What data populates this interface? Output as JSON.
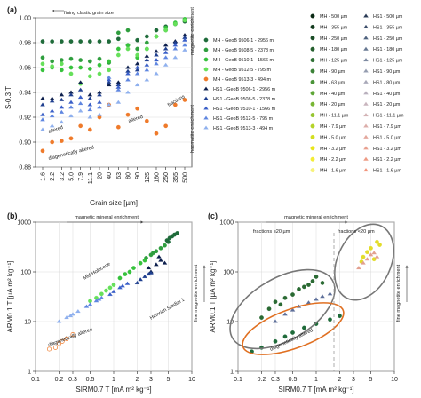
{
  "figure": {
    "panels": {
      "a": {
        "label": "(a)",
        "ylabel": "S-0.3 T",
        "xlabel": "Grain size [µm]",
        "annotations": {
          "fining": "fining clastic grain size",
          "magnetite_enrichment": "magnetite enrichment",
          "haematite_enrichment": "haematite enrichment",
          "fractions": "fractions",
          "altered_1": "altered",
          "altered_2": "altered",
          "diag": "diagenetically altered"
        }
      },
      "b": {
        "label": "(b)",
        "ylabel": "ARM0.1 T [µA m² kg⁻¹]",
        "xlabel": "SIRM0.7 T [mA m² kg⁻¹]",
        "annotations": {
          "enrich": "magnetic mineral enrichment",
          "fine": "fine magnetite enrichment",
          "mid_holocene": "Mid Holocene",
          "heinrich": "Heinrich Stadial 1",
          "diag": "diagenetically altered"
        }
      },
      "c": {
        "label": "(c)",
        "ylabel": "ARM0.1 T [µA m² kg⁻¹]",
        "xlabel": "SIRM0.7 T [mA m² kg⁻¹]",
        "annotations": {
          "enrich": "magnetic mineral enrichment",
          "fine": "fine magnetite enrichment",
          "frac_gt": "fractions ≥20 µm",
          "frac_lt": "fractions <20 µm",
          "diag": "diagenetically altered"
        }
      }
    },
    "legend_a": [
      {
        "label": "MH - GeoB 9506-1 - 2956 m",
        "color": "#1f6b3a",
        "marker": "circle"
      },
      {
        "label": "MH - GeoB 9508-5 - 2378 m",
        "color": "#2f9e3e",
        "marker": "circle"
      },
      {
        "label": "MH - GeoB 9510-1 - 1566 m",
        "color": "#36c23c",
        "marker": "circle"
      },
      {
        "label": "MH - GeoB 9512-5 - 795 m",
        "color": "#66e05a",
        "marker": "circle"
      },
      {
        "label": "MH - GeoB 9513-3 - 494 m",
        "color": "#ef7a2a",
        "marker": "circle"
      },
      {
        "label": "HS1 - GeoB 9506-1 - 2956 m",
        "color": "#0d1f4d",
        "marker": "triangle"
      },
      {
        "label": "HS1 - GeoB 9508-5 - 2378 m",
        "color": "#1f3f8f",
        "marker": "triangle"
      },
      {
        "label": "HS1 - GeoB 9510-1 - 1566 m",
        "color": "#3a5fc8",
        "marker": "triangle"
      },
      {
        "label": "HS1 - GeoB 9512-5 - 795 m",
        "color": "#5f86e0",
        "marker": "triangle"
      },
      {
        "label": "HS1 - GeoB 9513-3 - 494 m",
        "color": "#8fb0ee",
        "marker": "triangle"
      }
    ],
    "legend_c": {
      "mh": [
        {
          "label": "MH - 500 µm",
          "color": "#0a2a14"
        },
        {
          "label": "MH - 355 µm",
          "color": "#123a1d"
        },
        {
          "label": "MH - 250 µm",
          "color": "#1b4d26"
        },
        {
          "label": "MH - 180 µm",
          "color": "#255f2e"
        },
        {
          "label": "MH - 125 µm",
          "color": "#2f7034"
        },
        {
          "label": "MH - 90 µm",
          "color": "#3b8237"
        },
        {
          "label": "MH - 63 µm",
          "color": "#4a9438"
        },
        {
          "label": "MH - 40 µm",
          "color": "#5ea637"
        },
        {
          "label": "MH - 20 µm",
          "color": "#78b634"
        },
        {
          "label": "MH - 11.1 µm",
          "color": "#96c52f"
        },
        {
          "label": "MH - 7.9 µm",
          "color": "#b5d328"
        },
        {
          "label": "MH - 5.0 µm",
          "color": "#d2de20"
        },
        {
          "label": "MH - 3.2 µm",
          "color": "#e8e51a"
        },
        {
          "label": "MH - 2.2 µm",
          "color": "#f3ec36"
        },
        {
          "label": "MH - 1.6 µm",
          "color": "#f7f27a"
        }
      ],
      "hs1": [
        {
          "label": "HS1 - 500 µm",
          "color": "#2a3a55"
        },
        {
          "label": "HS1 - 355 µm",
          "color": "#3b4d6a"
        },
        {
          "label": "HS1 - 250 µm",
          "color": "#4f627f"
        },
        {
          "label": "HS1 - 180 µm",
          "color": "#667791"
        },
        {
          "label": "HS1 - 125 µm",
          "color": "#7e8ba2"
        },
        {
          "label": "HS1 - 90 µm",
          "color": "#959db0"
        },
        {
          "label": "HS1 - 80 µm",
          "color": "#a8a8b8"
        },
        {
          "label": "HS1 - 40 µm",
          "color": "#b9b0bd"
        },
        {
          "label": "HS1 - 20 µm",
          "color": "#c8b4bd"
        },
        {
          "label": "HS1 - 11.1 µm",
          "color": "#d3b3b5"
        },
        {
          "label": "HS1 - 7.9 µm",
          "color": "#dcaeaa"
        },
        {
          "label": "HS1 - 5.0 µm",
          "color": "#e3a79c"
        },
        {
          "label": "HS1 - 3.2 µm",
          "color": "#e9a08f"
        },
        {
          "label": "HS1 - 2.2 µm",
          "color": "#ee9a84"
        },
        {
          "label": "HS1 - 1.6 µm",
          "color": "#f2957c"
        }
      ]
    }
  },
  "chart_data": [
    {
      "panel": "a",
      "type": "scatter",
      "xlabel": "Grain size [µm]",
      "ylabel": "S-0.3 T",
      "x_categories": [
        "1.6",
        "2.2",
        "3.2",
        "5.0",
        "7.9",
        "11.1",
        "20",
        "40",
        "63",
        "80",
        "90",
        "125",
        "180",
        "250",
        "355",
        "500"
      ],
      "ylim": [
        0.88,
        1.0
      ],
      "yticks": [
        0.88,
        0.9,
        0.92,
        0.94,
        0.96,
        0.98,
        1.0
      ],
      "series": [
        {
          "name": "MH - GeoB 9506-1 - 2956 m",
          "values": [
            0.981,
            0.981,
            0.981,
            0.981,
            0.981,
            0.981,
            0.981,
            0.981,
            0.983,
            0.978,
            0.982,
            0.985,
            0.99,
            0.993,
            0.995,
            0.997
          ]
        },
        {
          "name": "MH - GeoB 9508-5 - 2378 m",
          "values": [
            0.968,
            0.965,
            0.966,
            0.967,
            0.966,
            0.965,
            0.967,
            0.964,
            0.988,
            0.99,
            0.975,
            0.98,
            0.985,
            0.99,
            0.995,
            0.998
          ]
        },
        {
          "name": "MH - GeoB 9510-1 - 1566 m",
          "values": [
            0.958,
            0.96,
            0.958,
            0.96,
            0.96,
            0.959,
            0.962,
            0.965,
            0.975,
            0.978,
            0.968,
            0.975,
            0.985,
            0.992,
            0.996,
            0.999
          ]
        },
        {
          "name": "MH - GeoB 9512-5 - 795 m",
          "values": [
            0.963,
            0.961,
            0.963,
            0.955,
            0.947,
            0.953,
            0.955,
            0.958,
            0.97,
            0.975,
            0.97,
            0.975,
            0.985,
            0.99,
            0.995,
            0.998
          ]
        },
        {
          "name": "MH - GeoB 9513-3 - 494 m",
          "values": [
            0.893,
            0.9,
            0.901,
            0.903,
            0.913,
            0.91,
            0.92,
            0.93,
            0.912,
            0.922,
            0.927,
            0.917,
            0.907,
            0.913,
            0.93,
            0.934
          ]
        },
        {
          "name": "HS1 - GeoB 9506-1 - 2956 m",
          "values": [
            0.935,
            0.935,
            0.938,
            0.94,
            0.948,
            0.938,
            0.94,
            0.946,
            0.948,
            0.96,
            0.963,
            0.969,
            0.973,
            0.978,
            0.981,
            0.986
          ]
        },
        {
          "name": "HS1 - GeoB 9508-5 - 2378 m",
          "values": [
            0.93,
            0.933,
            0.934,
            0.938,
            0.942,
            0.935,
            0.938,
            0.948,
            0.946,
            0.957,
            0.958,
            0.966,
            0.97,
            0.975,
            0.98,
            0.984
          ]
        },
        {
          "name": "HS1 - GeoB 9510-1 - 1566 m",
          "values": [
            0.922,
            0.925,
            0.928,
            0.932,
            0.936,
            0.93,
            0.932,
            0.95,
            0.944,
            0.955,
            0.96,
            0.962,
            0.966,
            0.972,
            0.978,
            0.982
          ]
        },
        {
          "name": "HS1 - GeoB 9512-5 - 795 m",
          "values": [
            0.918,
            0.921,
            0.924,
            0.928,
            0.931,
            0.926,
            0.928,
            0.952,
            0.942,
            0.95,
            0.955,
            0.958,
            0.963,
            0.968,
            0.975,
            0.978
          ]
        },
        {
          "name": "HS1 - GeoB 9513-3 - 494 m",
          "values": [
            0.91,
            0.913,
            0.916,
            0.921,
            0.925,
            0.92,
            0.922,
            0.93,
            0.932,
            0.94,
            0.946,
            0.95,
            0.955,
            0.962,
            0.968,
            0.974
          ]
        }
      ]
    },
    {
      "panel": "b",
      "type": "scatter",
      "xscale": "log",
      "yscale": "log",
      "xlim": [
        0.1,
        10
      ],
      "ylim": [
        1,
        1000
      ],
      "xticks": [
        0.1,
        0.2,
        0.3,
        0.5,
        1,
        2,
        3,
        5,
        10
      ],
      "yticks": [
        1,
        10,
        100,
        1000
      ],
      "xlabel": "SIRM0.7 T [mA m² kg⁻¹]",
      "ylabel": "ARM0.1 T [µA m² kg⁻¹]",
      "series": [
        {
          "name": "MH - GeoB 9506-1 - 2956 m",
          "points": [
            [
              5.2,
              480
            ],
            [
              6.0,
              560
            ],
            [
              5.6,
              520
            ],
            [
              4.8,
              430
            ],
            [
              6.5,
              600
            ],
            [
              5.0,
              400
            ]
          ]
        },
        {
          "name": "MH - GeoB 9508-5 - 2378 m",
          "points": [
            [
              3.0,
              220
            ],
            [
              3.5,
              260
            ],
            [
              4.0,
              300
            ],
            [
              2.6,
              190
            ],
            [
              4.5,
              340
            ],
            [
              3.2,
              240
            ]
          ]
        },
        {
          "name": "MH - GeoB 9510-1 - 1566 m",
          "points": [
            [
              1.4,
              90
            ],
            [
              1.8,
              120
            ],
            [
              2.2,
              150
            ],
            [
              1.2,
              75
            ],
            [
              2.5,
              170
            ],
            [
              1.6,
              100
            ]
          ]
        },
        {
          "name": "MH - GeoB 9512-5 - 795 m",
          "points": [
            [
              0.6,
              30
            ],
            [
              0.8,
              42
            ],
            [
              1.0,
              55
            ],
            [
              0.5,
              26
            ],
            [
              0.7,
              36
            ],
            [
              0.9,
              48
            ]
          ]
        },
        {
          "name": "MH - GeoB 9513-3 - 494 m",
          "points": [
            [
              0.15,
              2.8
            ],
            [
              0.2,
              3.6
            ],
            [
              0.25,
              4.5
            ],
            [
              0.3,
              5.5
            ],
            [
              0.18,
              3.0
            ],
            [
              0.22,
              4.0
            ]
          ]
        },
        {
          "name": "HS1 - GeoB 9506-1 - 2956 m",
          "points": [
            [
              3.0,
              100
            ],
            [
              3.5,
              140
            ],
            [
              4.0,
              170
            ],
            [
              2.8,
              120
            ],
            [
              3.8,
              200
            ],
            [
              4.5,
              150
            ]
          ]
        },
        {
          "name": "HS1 - GeoB 9508-5 - 2378 m",
          "points": [
            [
              2.0,
              60
            ],
            [
              2.5,
              80
            ],
            [
              3.0,
              95
            ],
            [
              2.2,
              70
            ],
            [
              2.8,
              90
            ]
          ]
        },
        {
          "name": "HS1 - GeoB 9510-1 - 1566 m",
          "points": [
            [
              1.0,
              40
            ],
            [
              1.2,
              48
            ],
            [
              1.5,
              58
            ],
            [
              0.9,
              35
            ],
            [
              1.3,
              52
            ]
          ]
        },
        {
          "name": "HS1 - GeoB 9512-5 - 795 m",
          "points": [
            [
              0.5,
              22
            ],
            [
              0.6,
              26
            ],
            [
              0.7,
              30
            ],
            [
              0.45,
              20
            ],
            [
              0.65,
              28
            ]
          ]
        },
        {
          "name": "HS1 - GeoB 9513-3 - 494 m",
          "points": [
            [
              0.2,
              10
            ],
            [
              0.25,
              12
            ],
            [
              0.3,
              14
            ],
            [
              0.35,
              16
            ],
            [
              0.28,
              13
            ]
          ]
        }
      ]
    },
    {
      "panel": "c",
      "type": "scatter",
      "xscale": "log",
      "yscale": "log",
      "xlim": [
        0.1,
        10
      ],
      "ylim": [
        1,
        1000
      ],
      "xticks": [
        0.1,
        0.2,
        0.3,
        0.5,
        1,
        2,
        3,
        5,
        10
      ],
      "yticks": [
        1,
        10,
        100,
        1000
      ],
      "xlabel": "SIRM0.7 T [mA m² kg⁻¹]",
      "ylabel": "ARM0.1 T [µA m² kg⁻¹]",
      "series": [
        {
          "name": "MH ≥20 µm",
          "points": [
            [
              0.2,
              12
            ],
            [
              0.25,
              18
            ],
            [
              0.3,
              25
            ],
            [
              0.4,
              30
            ],
            [
              0.5,
              35
            ],
            [
              0.6,
              45
            ],
            [
              0.7,
              50
            ],
            [
              0.9,
              65
            ],
            [
              1.0,
              80
            ],
            [
              1.2,
              60
            ],
            [
              0.35,
              22
            ],
            [
              0.8,
              55
            ]
          ]
        },
        {
          "name": "MH <20 µm",
          "points": [
            [
              4.5,
              250
            ],
            [
              5.0,
              300
            ],
            [
              6.0,
              400
            ],
            [
              4.0,
              200
            ],
            [
              5.5,
              180
            ],
            [
              6.5,
              350
            ],
            [
              3.8,
              160
            ]
          ]
        },
        {
          "name": "HS1 ≥20 µm",
          "points": [
            [
              0.3,
              10
            ],
            [
              0.4,
              14
            ],
            [
              0.5,
              17
            ],
            [
              0.6,
              20
            ],
            [
              0.8,
              24
            ],
            [
              1.0,
              28
            ],
            [
              1.2,
              32
            ],
            [
              1.5,
              36
            ]
          ]
        },
        {
          "name": "HS1 <20 µm",
          "points": [
            [
              3.5,
              120
            ],
            [
              4.0,
              150
            ],
            [
              4.5,
              180
            ],
            [
              5.0,
              220
            ],
            [
              5.5,
              240
            ],
            [
              6.0,
              200
            ]
          ]
        },
        {
          "name": "diagenetically altered",
          "points": [
            [
              0.15,
              2.5
            ],
            [
              0.2,
              3.0
            ],
            [
              0.3,
              4.0
            ],
            [
              0.4,
              5.0
            ],
            [
              0.5,
              6.0
            ],
            [
              0.7,
              7.5
            ],
            [
              1.0,
              9.0
            ],
            [
              1.5,
              11.0
            ],
            [
              2.0,
              13.0
            ]
          ]
        }
      ]
    }
  ]
}
